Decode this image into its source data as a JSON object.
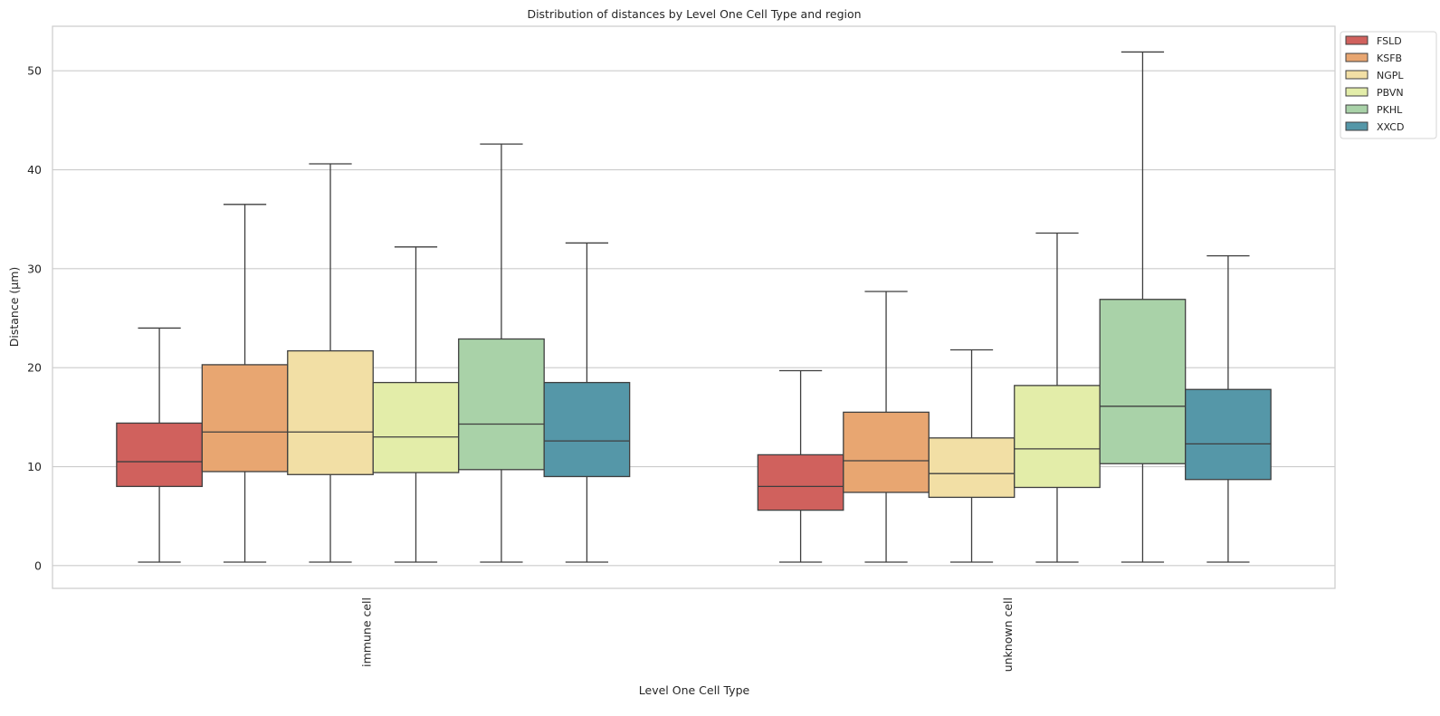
{
  "chart_data": {
    "type": "box",
    "title": "Distribution of distances by Level One Cell Type and region",
    "xlabel": "Level One Cell Type",
    "ylabel": "Distance (µm)",
    "ylim": [
      -2.3,
      54.5
    ],
    "yticks": [
      0,
      10,
      20,
      30,
      40,
      50
    ],
    "grid": true,
    "legend_position": "outside-top-right",
    "categories": [
      "immune cell",
      "unknown cell"
    ],
    "series": [
      {
        "name": "FSLD",
        "color": "#d0615d",
        "boxes": [
          {
            "whislo": 0.35,
            "q1": 8.0,
            "med": 10.5,
            "q3": 14.4,
            "whishi": 24.0
          },
          {
            "whislo": 0.35,
            "q1": 5.6,
            "med": 8.0,
            "q3": 11.2,
            "whishi": 19.7
          }
        ]
      },
      {
        "name": "KSFB",
        "color": "#e8a671",
        "boxes": [
          {
            "whislo": 0.35,
            "q1": 9.5,
            "med": 13.5,
            "q3": 20.3,
            "whishi": 36.5
          },
          {
            "whislo": 0.35,
            "q1": 7.4,
            "med": 10.6,
            "q3": 15.5,
            "whishi": 27.7
          }
        ]
      },
      {
        "name": "NGPL",
        "color": "#f2dfa5",
        "boxes": [
          {
            "whislo": 0.35,
            "q1": 9.2,
            "med": 13.5,
            "q3": 21.7,
            "whishi": 40.6
          },
          {
            "whislo": 0.35,
            "q1": 6.9,
            "med": 9.3,
            "q3": 12.9,
            "whishi": 21.8
          }
        ]
      },
      {
        "name": "PBVN",
        "color": "#e3eda9",
        "boxes": [
          {
            "whislo": 0.35,
            "q1": 9.4,
            "med": 13.0,
            "q3": 18.5,
            "whishi": 32.2
          },
          {
            "whislo": 0.35,
            "q1": 7.9,
            "med": 11.8,
            "q3": 18.2,
            "whishi": 33.6
          }
        ]
      },
      {
        "name": "PKHL",
        "color": "#a9d2a8",
        "boxes": [
          {
            "whislo": 0.35,
            "q1": 9.7,
            "med": 14.3,
            "q3": 22.9,
            "whishi": 42.6
          },
          {
            "whislo": 0.35,
            "q1": 10.3,
            "med": 16.1,
            "q3": 26.9,
            "whishi": 51.9
          }
        ]
      },
      {
        "name": "XXCD",
        "color": "#5597a8",
        "boxes": [
          {
            "whislo": 0.35,
            "q1": 9.0,
            "med": 12.6,
            "q3": 18.5,
            "whishi": 32.6
          },
          {
            "whislo": 0.35,
            "q1": 8.7,
            "med": 12.3,
            "q3": 17.8,
            "whishi": 31.3
          }
        ]
      }
    ]
  }
}
